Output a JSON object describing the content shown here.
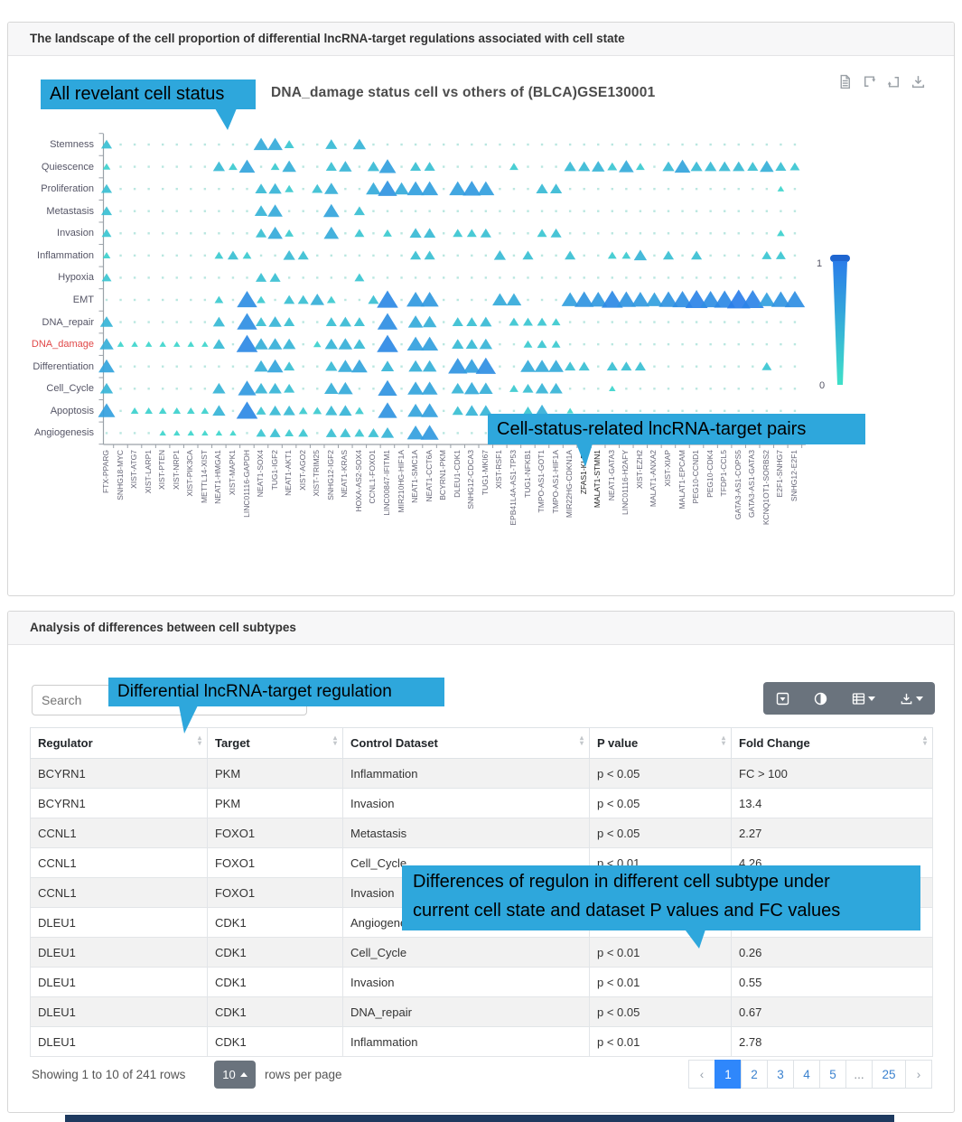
{
  "panel1": {
    "header": "The landscape of the cell proportion of differential lncRNA-target regulations associated with cell state",
    "chart_title": "DNA_damage status cell vs others of (BLCA)GSE130001",
    "annotation_cell_status": "All revelant cell status",
    "annotation_pairs": "Cell-status-related lncRNA-target pairs",
    "toolbox_icons": [
      "data-view-icon",
      "restore-icon",
      "restore-icon",
      "save-image-icon"
    ]
  },
  "chart_data": {
    "type": "scatter",
    "title": "DNA_damage status cell vs others of (BLCA)GSE130001",
    "ylabel": "",
    "xlabel": "",
    "legend_position": "right",
    "grid": false,
    "y_categories": [
      "Stemness",
      "Quiescence",
      "Proliferation",
      "Metastasis",
      "Invasion",
      "Inflammation",
      "Hypoxia",
      "EMT",
      "DNA_repair",
      "DNA_damage",
      "Differentiation",
      "Cell_Cycle",
      "Apoptosis",
      "Angiogenesis"
    ],
    "highlighted_y_category": "DNA_damage",
    "highlighted_x_categories": [
      "ZFAS1-KLF2",
      "MALAT1-STMN1"
    ],
    "x_categories": [
      "FTX-PPARG",
      "SNHG18-MYC",
      "XIST-ATG7",
      "XIST-LARP1",
      "XIST-PTEN",
      "XIST-NRP1",
      "XIST-PIK3CA",
      "METTL14-XIST",
      "NEAT1-HMGA1",
      "XIST-MAPK1",
      "LINC01116-GAPDH",
      "NEAT1-SOX4",
      "TUG1-IGF2",
      "NEAT1-AKT1",
      "XIST-AGO2",
      "XIST-TRIM25",
      "SNHG12-IGF2",
      "NEAT1-KRAS",
      "HOXA-AS2-SOX4",
      "CCNL1-FOXO1",
      "LINC00847-IFITM1",
      "MIR210HG-HIF1A",
      "NEAT1-SMC1A",
      "NEAT1-CCT6A",
      "BCYRN1-PKM",
      "DLEU1-CDK1",
      "SNHG12-CDCA3",
      "TUG1-MKI67",
      "XIST-RSF1",
      "EPB41L4A-AS1-TP53",
      "TUG1-NFKB1",
      "TMPO-AS1-GOT1",
      "TMPO-AS1-HIF1A",
      "MIR22HG-CDKN1A",
      "ZFAS1-KLF2",
      "MALAT1-STMN1",
      "NEAT1-GATA3",
      "LINC01116-H2AFY",
      "XIST-EZH2",
      "MALAT1-ANXA2",
      "XIST-XIAP",
      "MALAT1-EPCAM",
      "PEG10-CCND1",
      "PEG10-CDK4",
      "TFDP1-CCL5",
      "GATA3-AS1-COPS5",
      "GATA3-AS1-GATA3",
      "KCNQ1OT1-SORBS2",
      "E2F1-SNHG7",
      "SNHG12-E2F1"
    ],
    "colorscale": {
      "min_label": "0",
      "max_label": "1",
      "low_color": "#3fe0c8",
      "high_color": "#2b7de9",
      "cap_color": "#1f66d0",
      "dot_color": "#b9e7e0"
    },
    "values": [
      [
        0.3,
        0.04,
        0.04,
        0.04,
        0.04,
        0.04,
        0.04,
        0.04,
        0.04,
        0.04,
        0.04,
        0.5,
        0.5,
        0.25,
        0.04,
        0.04,
        0.35,
        0.04,
        0.4,
        0.04,
        0.04,
        0.04,
        0.04,
        0.04,
        0.04,
        0.04,
        0.04,
        0.04,
        0.04,
        0.04,
        0.04,
        0.04,
        0.04,
        0.04,
        0.04,
        0.04,
        0.04,
        0.04,
        0.04,
        0.04,
        0.04,
        0.04,
        0.04,
        0.04,
        0.04,
        0.04,
        0.04,
        0.04,
        0.04,
        0.04
      ],
      [
        0.15,
        0.04,
        0.04,
        0.04,
        0.04,
        0.04,
        0.04,
        0.04,
        0.35,
        0.2,
        0.55,
        0.04,
        0.2,
        0.45,
        0.04,
        0.04,
        0.3,
        0.4,
        0.04,
        0.35,
        0.6,
        0.04,
        0.3,
        0.3,
        0.04,
        0.04,
        0.04,
        0.04,
        0.04,
        0.2,
        0.04,
        0.04,
        0.04,
        0.35,
        0.35,
        0.4,
        0.25,
        0.5,
        0.2,
        0.04,
        0.35,
        0.55,
        0.35,
        0.35,
        0.35,
        0.35,
        0.3,
        0.45,
        0.3,
        0.25
      ],
      [
        0.3,
        0.04,
        0.04,
        0.04,
        0.04,
        0.04,
        0.04,
        0.04,
        0.04,
        0.04,
        0.04,
        0.35,
        0.4,
        0.2,
        0.04,
        0.3,
        0.45,
        0.04,
        0.04,
        0.5,
        0.7,
        0.5,
        0.6,
        0.6,
        0.04,
        0.6,
        0.65,
        0.6,
        0.04,
        0.04,
        0.04,
        0.35,
        0.35,
        0.04,
        0.04,
        0.04,
        0.04,
        0.04,
        0.04,
        0.04,
        0.04,
        0.04,
        0.04,
        0.04,
        0.04,
        0.04,
        0.04,
        0.04,
        0.1,
        0.04
      ],
      [
        0.3,
        0.04,
        0.04,
        0.04,
        0.04,
        0.04,
        0.04,
        0.04,
        0.04,
        0.04,
        0.04,
        0.4,
        0.5,
        0.04,
        0.04,
        0.04,
        0.55,
        0.04,
        0.3,
        0.04,
        0.04,
        0.04,
        0.04,
        0.04,
        0.04,
        0.04,
        0.04,
        0.04,
        0.04,
        0.04,
        0.04,
        0.04,
        0.04,
        0.04,
        0.04,
        0.04,
        0.04,
        0.04,
        0.04,
        0.04,
        0.04,
        0.04,
        0.04,
        0.04,
        0.04,
        0.04,
        0.04,
        0.04,
        0.04,
        0.04
      ],
      [
        0.25,
        0.04,
        0.04,
        0.04,
        0.04,
        0.04,
        0.04,
        0.04,
        0.04,
        0.04,
        0.04,
        0.3,
        0.5,
        0.2,
        0.04,
        0.04,
        0.5,
        0.04,
        0.25,
        0.04,
        0.2,
        0.04,
        0.35,
        0.35,
        0.04,
        0.25,
        0.25,
        0.3,
        0.04,
        0.04,
        0.04,
        0.25,
        0.3,
        0.04,
        0.04,
        0.04,
        0.04,
        0.04,
        0.04,
        0.04,
        0.04,
        0.04,
        0.04,
        0.04,
        0.04,
        0.04,
        0.04,
        0.04,
        0.15,
        0.04
      ],
      [
        0.15,
        0.04,
        0.04,
        0.04,
        0.04,
        0.04,
        0.04,
        0.04,
        0.2,
        0.3,
        0.2,
        0.04,
        0.04,
        0.35,
        0.3,
        0.04,
        0.04,
        0.04,
        0.04,
        0.04,
        0.04,
        0.04,
        0.3,
        0.3,
        0.04,
        0.04,
        0.04,
        0.04,
        0.35,
        0.04,
        0.3,
        0.04,
        0.04,
        0.3,
        0.04,
        0.04,
        0.2,
        0.2,
        0.4,
        0.04,
        0.3,
        0.04,
        0.3,
        0.04,
        0.04,
        0.04,
        0.04,
        0.25,
        0.25,
        0.04
      ],
      [
        0.25,
        0.04,
        0.04,
        0.04,
        0.04,
        0.04,
        0.04,
        0.04,
        0.04,
        0.04,
        0.04,
        0.3,
        0.3,
        0.04,
        0.04,
        0.04,
        0.04,
        0.04,
        0.25,
        0.04,
        0.04,
        0.04,
        0.04,
        0.04,
        0.04,
        0.04,
        0.04,
        0.04,
        0.04,
        0.04,
        0.04,
        0.04,
        0.04,
        0.04,
        0.04,
        0.04,
        0.04,
        0.04,
        0.04,
        0.04,
        0.04,
        0.04,
        0.04,
        0.04,
        0.04,
        0.04,
        0.04,
        0.04,
        0.04,
        0.04
      ],
      [
        0.04,
        0.04,
        0.04,
        0.04,
        0.04,
        0.04,
        0.04,
        0.04,
        0.2,
        0.04,
        0.75,
        0.2,
        0.04,
        0.3,
        0.3,
        0.45,
        0.2,
        0.04,
        0.04,
        0.3,
        0.8,
        0.04,
        0.65,
        0.65,
        0.04,
        0.04,
        0.04,
        0.04,
        0.5,
        0.5,
        0.04,
        0.04,
        0.04,
        0.6,
        0.7,
        0.65,
        0.8,
        0.7,
        0.65,
        0.6,
        0.7,
        0.75,
        0.85,
        0.75,
        0.8,
        0.9,
        0.85,
        0.6,
        0.7,
        0.75
      ],
      [
        0.4,
        0.04,
        0.04,
        0.04,
        0.04,
        0.04,
        0.04,
        0.04,
        0.35,
        0.04,
        0.75,
        0.3,
        0.4,
        0.3,
        0.04,
        0.04,
        0.3,
        0.35,
        0.3,
        0.04,
        0.75,
        0.04,
        0.5,
        0.45,
        0.04,
        0.3,
        0.3,
        0.35,
        0.04,
        0.25,
        0.25,
        0.25,
        0.2,
        0.04,
        0.04,
        0.04,
        0.04,
        0.04,
        0.04,
        0.04,
        0.04,
        0.04,
        0.04,
        0.04,
        0.04,
        0.04,
        0.04,
        0.04,
        0.04,
        0.04
      ],
      [
        0.45,
        0.1,
        0.1,
        0.1,
        0.1,
        0.1,
        0.1,
        0.1,
        0.35,
        0.04,
        0.8,
        0.45,
        0.45,
        0.4,
        0.04,
        0.15,
        0.4,
        0.45,
        0.35,
        0.04,
        0.8,
        0.04,
        0.6,
        0.6,
        0.04,
        0.35,
        0.35,
        0.4,
        0.04,
        0.04,
        0.2,
        0.25,
        0.2,
        0.04,
        0.04,
        0.04,
        0.04,
        0.04,
        0.04,
        0.04,
        0.04,
        0.04,
        0.04,
        0.04,
        0.04,
        0.04,
        0.04,
        0.04,
        0.04,
        0.04
      ],
      [
        0.55,
        0.04,
        0.04,
        0.04,
        0.04,
        0.04,
        0.04,
        0.04,
        0.04,
        0.04,
        0.04,
        0.45,
        0.55,
        0.3,
        0.04,
        0.04,
        0.35,
        0.5,
        0.55,
        0.04,
        0.4,
        0.04,
        0.45,
        0.45,
        0.04,
        0.7,
        0.6,
        0.75,
        0.04,
        0.04,
        0.5,
        0.5,
        0.5,
        0.3,
        0.3,
        0.04,
        0.3,
        0.3,
        0.3,
        0.04,
        0.04,
        0.04,
        0.04,
        0.04,
        0.04,
        0.04,
        0.04,
        0.25,
        0.04,
        0.04
      ],
      [
        0.4,
        0.04,
        0.04,
        0.04,
        0.04,
        0.04,
        0.04,
        0.04,
        0.4,
        0.04,
        0.65,
        0.4,
        0.4,
        0.3,
        0.04,
        0.04,
        0.45,
        0.5,
        0.04,
        0.04,
        0.7,
        0.04,
        0.55,
        0.55,
        0.04,
        0.4,
        0.5,
        0.45,
        0.04,
        0.2,
        0.3,
        0.4,
        0.4,
        0.04,
        0.04,
        0.04,
        0.1,
        0.04,
        0.04,
        0.04,
        0.04,
        0.04,
        0.04,
        0.04,
        0.04,
        0.04,
        0.04,
        0.04,
        0.04,
        0.04
      ],
      [
        0.6,
        0.04,
        0.15,
        0.15,
        0.15,
        0.15,
        0.15,
        0.15,
        0.4,
        0.04,
        0.8,
        0.25,
        0.35,
        0.35,
        0.2,
        0.2,
        0.35,
        0.4,
        0.2,
        0.04,
        0.7,
        0.04,
        0.55,
        0.6,
        0.04,
        0.3,
        0.4,
        0.4,
        0.04,
        0.04,
        0.25,
        0.45,
        0.04,
        0.1,
        0.04,
        0.04,
        0.04,
        0.04,
        0.04,
        0.04,
        0.04,
        0.04,
        0.04,
        0.04,
        0.04,
        0.04,
        0.04,
        0.04,
        0.04,
        0.04
      ],
      [
        0.04,
        0.04,
        0.04,
        0.04,
        0.1,
        0.1,
        0.1,
        0.1,
        0.1,
        0.1,
        0.04,
        0.25,
        0.3,
        0.2,
        0.25,
        0.04,
        0.3,
        0.3,
        0.25,
        0.3,
        0.4,
        0.04,
        0.6,
        0.65,
        0.04,
        0.04,
        0.04,
        0.04,
        0.04,
        0.04,
        0.04,
        0.04,
        0.04,
        0.04,
        0.04,
        0.04,
        0.04,
        0.04,
        0.04,
        0.04,
        0.04,
        0.04,
        0.04,
        0.04,
        0.04,
        0.04,
        0.04,
        0.04,
        0.04,
        0.04
      ]
    ]
  },
  "panel2": {
    "header": "Analysis of differences between cell subtypes",
    "search_placeholder": "Search",
    "annotation_regulation": "Differential lncRNA-target regulation",
    "annotation_differences_line1": "Differences of regulon in different cell subtype under",
    "annotation_differences_line2": "current cell state and dataset P values and FC values",
    "toolbar_icons": [
      "card-view-icon",
      "pagination-toggle-icon",
      "columns-icon",
      "export-icon"
    ],
    "table": {
      "columns": [
        "Regulator",
        "Target",
        "Control Dataset",
        "P value",
        "Fold Change"
      ],
      "rows": [
        [
          "BCYRN1",
          "PKM",
          "Inflammation",
          "p < 0.05",
          "FC > 100"
        ],
        [
          "BCYRN1",
          "PKM",
          "Invasion",
          "p < 0.05",
          "13.4"
        ],
        [
          "CCNL1",
          "FOXO1",
          "Metastasis",
          "p < 0.05",
          "2.27"
        ],
        [
          "CCNL1",
          "FOXO1",
          "Cell_Cycle",
          "p < 0.01",
          "4.26"
        ],
        [
          "CCNL1",
          "FOXO1",
          "Invasion",
          "",
          ""
        ],
        [
          "DLEU1",
          "CDK1",
          "Angiogenesis",
          "",
          ""
        ],
        [
          "DLEU1",
          "CDK1",
          "Cell_Cycle",
          "p < 0.01",
          "0.26"
        ],
        [
          "DLEU1",
          "CDK1",
          "Invasion",
          "p < 0.01",
          "0.55"
        ],
        [
          "DLEU1",
          "CDK1",
          "DNA_repair",
          "p < 0.05",
          "0.67"
        ],
        [
          "DLEU1",
          "CDK1",
          "Inflammation",
          "p < 0.01",
          "2.78"
        ]
      ]
    },
    "footer": {
      "showing_text": "Showing 1 to 10 of 241 rows",
      "page_size": "10",
      "rows_per_page_text": "rows per page",
      "pages": [
        "‹",
        "1",
        "2",
        "3",
        "4",
        "5",
        "...",
        "25",
        "›"
      ],
      "active_page": "1"
    }
  },
  "colors": {
    "annotation_blue": "#2ea7dc",
    "toolbar_dark": "#6a737d",
    "active_page_blue": "#2f87fb",
    "footer_bar_navy": "#1e3a5f",
    "highlight_red": "#e04848"
  }
}
